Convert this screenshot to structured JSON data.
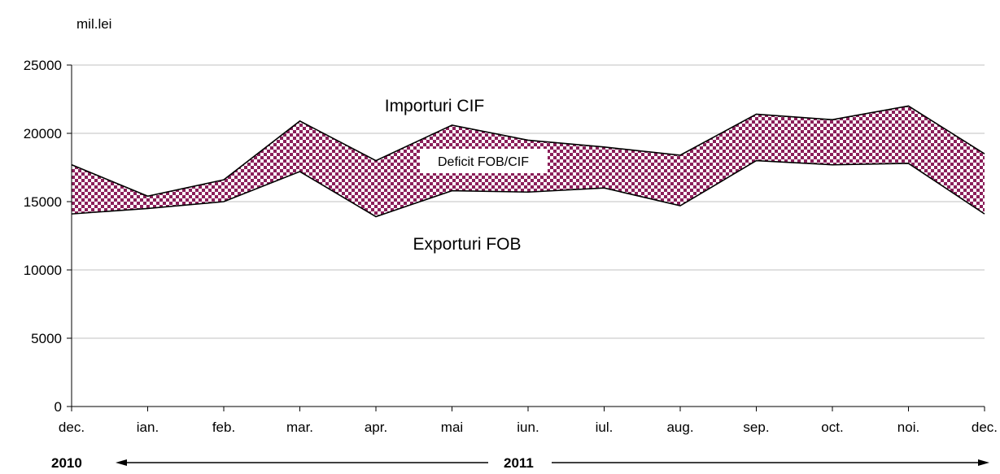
{
  "chart_data": {
    "type": "area",
    "unit_label": "mil.lei",
    "categories": [
      "dec.",
      "ian.",
      "feb.",
      "mar.",
      "apr.",
      "mai",
      "iun.",
      "iul.",
      "aug.",
      "sep.",
      "oct.",
      "noi.",
      "dec."
    ],
    "series": [
      {
        "name": "Importuri CIF",
        "values": [
          17700,
          15400,
          16600,
          20900,
          18000,
          20600,
          19500,
          19000,
          18400,
          21400,
          21000,
          22000,
          18500
        ]
      },
      {
        "name": "Exporturi FOB",
        "values": [
          14100,
          14500,
          15000,
          17200,
          13900,
          15800,
          15700,
          16000,
          14700,
          18000,
          17700,
          17800,
          14100
        ]
      }
    ],
    "band_label": "Deficit FOB/CIF",
    "ylim": [
      0,
      25000
    ],
    "yticks": [
      "0",
      "5000",
      "10000",
      "15000",
      "20000",
      "25000"
    ],
    "grid": true,
    "year_labels": [
      "2010",
      "2011"
    ],
    "colors": {
      "band": "#8b1f5a",
      "band_light": "#ffffff",
      "line": "#000000",
      "grid": "#c0c0c0"
    }
  }
}
